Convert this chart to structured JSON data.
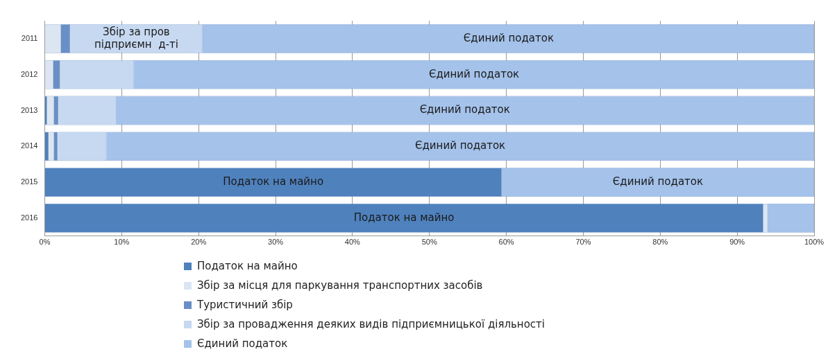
{
  "chart_data": {
    "type": "bar",
    "orientation": "horizontal",
    "stacked": true,
    "categories": [
      "2011",
      "2012",
      "2013",
      "2014",
      "2015",
      "2016"
    ],
    "series": [
      {
        "name": "Податок на майно",
        "color": "#4f81bd",
        "values": [
          0,
          0,
          0.3,
          0.5,
          59.4,
          93.4
        ]
      },
      {
        "name": "Збір за місця для паркування транспортних засобів",
        "color": "#dce6f2",
        "values": [
          2.1,
          1.1,
          0.9,
          0.7,
          0,
          0.5
        ]
      },
      {
        "name": "Туристичний збір",
        "color": "#6a8fc6",
        "values": [
          1.2,
          0.9,
          0.6,
          0.5,
          0,
          0
        ]
      },
      {
        "name": "Збір за провадження деяких видів підприємницької діяльності",
        "color": "#c6d9f1",
        "values": [
          17.2,
          9.6,
          7.4,
          6.3,
          0,
          0
        ]
      },
      {
        "name": "Єдиний податок",
        "color": "#a4c2ea",
        "values": [
          79.5,
          88.4,
          90.8,
          92.0,
          40.6,
          6.1
        ]
      }
    ],
    "xlim": [
      0,
      100
    ],
    "xticks": [
      {
        "value": 0,
        "label": "0%"
      },
      {
        "value": 10,
        "label": "10%"
      },
      {
        "value": 20,
        "label": "20%"
      },
      {
        "value": 30,
        "label": "30%"
      },
      {
        "value": 40,
        "label": "40%"
      },
      {
        "value": 50,
        "label": "50%"
      },
      {
        "value": 60,
        "label": "60%"
      },
      {
        "value": 70,
        "label": "70%"
      },
      {
        "value": 80,
        "label": "80%"
      },
      {
        "value": 90,
        "label": "90%"
      },
      {
        "value": 100,
        "label": "100%"
      }
    ],
    "grid": "x",
    "legend": "bottom",
    "annotations": [
      {
        "text": "Збір за пров підприємн  д-ті",
        "x": 11.9,
        "y": "2011"
      },
      {
        "text": "Єдиний податок",
        "x": 60.3,
        "y": "2011"
      },
      {
        "text": "Єдиний податок",
        "x": 55.8,
        "y": "2012"
      },
      {
        "text": "Єдиний податок",
        "x": 54.6,
        "y": "2013"
      },
      {
        "text": "Єдиний податок",
        "x": 54.0,
        "y": "2014"
      },
      {
        "text": "Податок на майно",
        "x": 29.7,
        "y": "2015"
      },
      {
        "text": "Єдиний податок",
        "x": 79.7,
        "y": "2015"
      },
      {
        "text": "Податок на майно",
        "x": 46.7,
        "y": "2016"
      }
    ]
  }
}
